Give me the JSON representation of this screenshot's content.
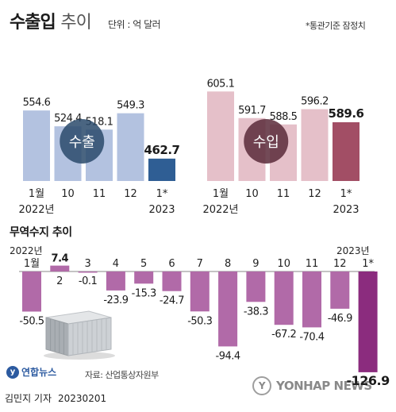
{
  "header": {
    "title_main": "수출입",
    "title_sub": "추이",
    "unit": "단위 : 억 달러",
    "note": "*통관기준 잠정치"
  },
  "colors": {
    "export_bar": "#b3c2e0",
    "export_highlight": "#2f5e94",
    "import_bar": "#e5c0c9",
    "import_highlight": "#a24e65",
    "trade_bar": "#b16aa8",
    "trade_bar_highlight": "#8b2c7e"
  },
  "chart_data": [
    {
      "type": "bar",
      "categories": [
        "1월 2022년",
        "10",
        "11",
        "12",
        "1* 2023"
      ],
      "values": [
        554.6,
        524.4,
        518.1,
        549.3,
        462.7
      ],
      "circle_label": "수출"
    },
    {
      "type": "bar",
      "categories": [
        "1월 2022년",
        "10",
        "11",
        "12",
        "1* 2023"
      ],
      "values": [
        605.1,
        591.7,
        588.5,
        596.2,
        589.6
      ],
      "circle_label": "수입"
    },
    {
      "type": "bar",
      "title": "무역수지 추이",
      "year_start": "2022년",
      "year_end": "2023년",
      "categories": [
        "1월",
        "2",
        "3",
        "4",
        "5",
        "6",
        "7",
        "8",
        "9",
        "10",
        "11",
        "12",
        "1*"
      ],
      "values": [
        -50.5,
        7.4,
        -0.1,
        -23.9,
        -15.3,
        -24.7,
        -50.3,
        -94.4,
        -38.3,
        -67.2,
        -70.4,
        -46.9,
        -126.9
      ]
    }
  ],
  "footer": {
    "source": "자료: 산업통상자원부",
    "byline": "김민지 기자",
    "date": "20230201",
    "logo_left": "연합뉴스",
    "logo_right": "YONHAP NEWS"
  }
}
